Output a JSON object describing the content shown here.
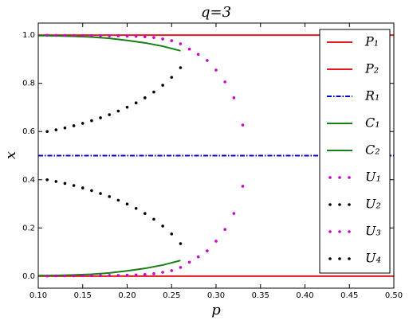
{
  "chart_data": {
    "type": "line",
    "title": "q=3",
    "xlabel": "p",
    "ylabel": "x",
    "xlim": [
      0.1,
      0.5
    ],
    "ylim": [
      -0.05,
      1.05
    ],
    "xticks": [
      {
        "value": 0.1,
        "label": "0.10"
      },
      {
        "value": 0.15,
        "label": "0.15"
      },
      {
        "value": 0.2,
        "label": "0.20"
      },
      {
        "value": 0.25,
        "label": "0.25"
      },
      {
        "value": 0.3,
        "label": "0.30"
      },
      {
        "value": 0.35,
        "label": "0.35"
      },
      {
        "value": 0.4,
        "label": "0.40"
      },
      {
        "value": 0.45,
        "label": "0.45"
      },
      {
        "value": 0.5,
        "label": "0.50"
      }
    ],
    "yticks": [
      {
        "value": 0,
        "label": "0.0"
      },
      0.2,
      0.4,
      0.6,
      0.8,
      {
        "value": 1,
        "label": "1.0"
      }
    ],
    "legend": "upper right",
    "series": [
      {
        "name": "P₁",
        "color": "#e41a1c",
        "style": "solid",
        "x": [
          0.1,
          0.5
        ],
        "values": [
          1,
          1
        ]
      },
      {
        "name": "P₂",
        "color": "#e41a1c",
        "style": "solid",
        "x": [
          0.1,
          0.5
        ],
        "values": [
          0,
          0
        ]
      },
      {
        "name": "R₁",
        "color": "#0000cc",
        "style": "dashdot",
        "x": [
          0.1,
          0.5
        ],
        "values": [
          0.5,
          0.5
        ]
      },
      {
        "name": "C₁",
        "color": "#128012",
        "style": "solid",
        "x": [
          0.1,
          0.12,
          0.14,
          0.16,
          0.18,
          0.2,
          0.22,
          0.24,
          0.26
        ],
        "values": [
          0.998,
          0.997,
          0.995,
          0.992,
          0.987,
          0.978,
          0.968,
          0.954,
          0.935
        ]
      },
      {
        "name": "C₂",
        "color": "#128012",
        "style": "solid",
        "x": [
          0.1,
          0.12,
          0.14,
          0.16,
          0.18,
          0.2,
          0.22,
          0.24,
          0.26
        ],
        "values": [
          0.002,
          0.003,
          0.005,
          0.008,
          0.013,
          0.022,
          0.032,
          0.046,
          0.065
        ]
      },
      {
        "name": "U₁",
        "color": "#cc00cc",
        "style": "dotted",
        "x": [
          0.11,
          0.12,
          0.13,
          0.14,
          0.15,
          0.16,
          0.17,
          0.18,
          0.19,
          0.2,
          0.21,
          0.22,
          0.23,
          0.24,
          0.25,
          0.26,
          0.27,
          0.28,
          0.29,
          0.3,
          0.31,
          0.32,
          0.33
        ],
        "values": [
          0.9995,
          0.999,
          0.999,
          0.999,
          0.998,
          0.998,
          0.998,
          0.997,
          0.997,
          0.996,
          0.995,
          0.993,
          0.99,
          0.984,
          0.977,
          0.964,
          0.942,
          0.92,
          0.895,
          0.855,
          0.806,
          0.74,
          0.627
        ]
      },
      {
        "name": "U₂",
        "color": "#000000",
        "style": "dotted",
        "x": [
          0.11,
          0.12,
          0.13,
          0.14,
          0.15,
          0.16,
          0.17,
          0.18,
          0.19,
          0.2,
          0.21,
          0.22,
          0.23,
          0.24,
          0.25,
          0.26
        ],
        "values": [
          0.6,
          0.607,
          0.615,
          0.624,
          0.634,
          0.645,
          0.657,
          0.67,
          0.685,
          0.701,
          0.719,
          0.74,
          0.764,
          0.792,
          0.825,
          0.865
        ]
      },
      {
        "name": "U₃",
        "color": "#cc00cc",
        "style": "dotted",
        "x": [
          0.11,
          0.12,
          0.13,
          0.14,
          0.15,
          0.16,
          0.17,
          0.18,
          0.19,
          0.2,
          0.21,
          0.22,
          0.23,
          0.24,
          0.25,
          0.26,
          0.27,
          0.28,
          0.29,
          0.3,
          0.31,
          0.32,
          0.33
        ],
        "values": [
          0.0005,
          0.001,
          0.001,
          0.001,
          0.002,
          0.002,
          0.002,
          0.003,
          0.003,
          0.004,
          0.005,
          0.007,
          0.01,
          0.016,
          0.023,
          0.036,
          0.058,
          0.08,
          0.105,
          0.145,
          0.194,
          0.26,
          0.373
        ]
      },
      {
        "name": "U₄",
        "color": "#000000",
        "style": "dotted",
        "x": [
          0.11,
          0.12,
          0.13,
          0.14,
          0.15,
          0.16,
          0.17,
          0.18,
          0.19,
          0.2,
          0.21,
          0.22,
          0.23,
          0.24,
          0.25,
          0.26
        ],
        "values": [
          0.4,
          0.393,
          0.385,
          0.376,
          0.366,
          0.355,
          0.343,
          0.33,
          0.315,
          0.299,
          0.281,
          0.26,
          0.236,
          0.208,
          0.175,
          0.135
        ]
      }
    ]
  }
}
